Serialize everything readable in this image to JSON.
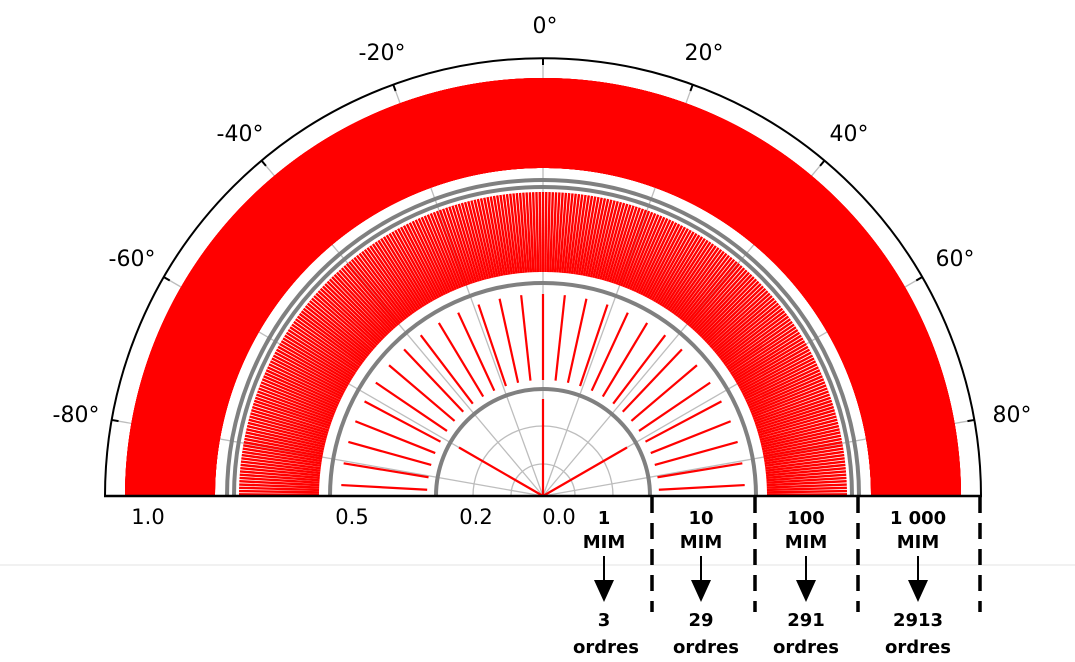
{
  "angle_labels": [
    "-80°",
    "-60°",
    "-40°",
    "-20°",
    "0°",
    "20°",
    "40°",
    "60°",
    "80°"
  ],
  "radius_labels": [
    "1.0",
    "0.5",
    "0.2",
    "0.0"
  ],
  "bins": [
    {
      "size": "1",
      "unit": "MIM",
      "count": "3",
      "orders": "ordres"
    },
    {
      "size": "10",
      "unit": "MIM",
      "count": "29",
      "orders": "ordres"
    },
    {
      "size": "100",
      "unit": "MIM",
      "count": "291",
      "orders": "ordres"
    },
    {
      "size": "1 000",
      "unit": "MIM",
      "count": "2913",
      "orders": "ordres"
    }
  ],
  "colors": {
    "orders": "#ff0000",
    "rings": "#808080",
    "grid": "#bdbdbd",
    "outline": "#000000"
  }
}
